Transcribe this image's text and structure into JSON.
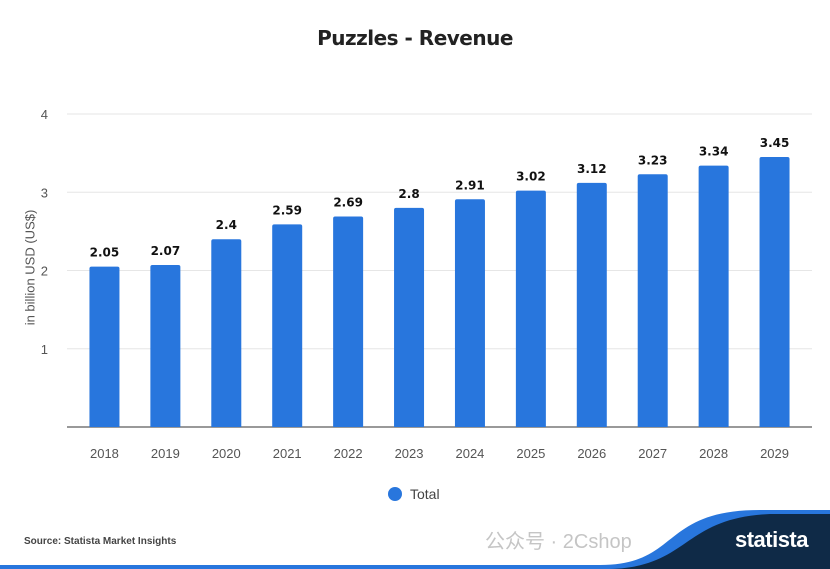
{
  "title": "Puzzles - Revenue",
  "source": "Source: Statista Market Insights",
  "watermark": "公众号 · 2Cshop",
  "brand": "statista",
  "colors": {
    "bar": "#2876dd",
    "brand_dark": "#0f2a47",
    "brand_blue": "#2876dd"
  },
  "chart_data": {
    "type": "bar",
    "title": "Puzzles - Revenue",
    "ylabel": "in billion USD (US$)",
    "xlabel": "",
    "categories": [
      "2018",
      "2019",
      "2020",
      "2021",
      "2022",
      "2023",
      "2024",
      "2025",
      "2026",
      "2027",
      "2028",
      "2029"
    ],
    "series": [
      {
        "name": "Total",
        "values": [
          2.05,
          2.07,
          2.4,
          2.59,
          2.69,
          2.8,
          2.91,
          3.02,
          3.12,
          3.23,
          3.34,
          3.45
        ]
      }
    ],
    "data_labels": [
      "2.05",
      "2.07",
      "2.4",
      "2.59",
      "2.69",
      "2.8",
      "2.91",
      "3.02",
      "3.12",
      "3.23",
      "3.34",
      "3.45"
    ],
    "yticks": [
      "1",
      "2",
      "3",
      "4"
    ],
    "ylim": [
      0,
      4
    ],
    "grid": true,
    "legend": "bottom-center"
  }
}
